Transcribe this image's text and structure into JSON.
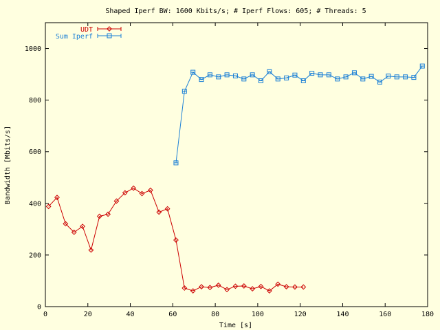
{
  "chart_data": {
    "type": "line",
    "title": "Shaped Iperf BW: 1600 Kbits/s; # Iperf Flows: 605; # Threads: 5",
    "xlabel": "Time [s]",
    "ylabel": "Bandwidth [Mbits/s]",
    "xlim": [
      0,
      180
    ],
    "ylim": [
      0,
      1100
    ],
    "xticks": [
      "0",
      "20",
      "40",
      "60",
      "80",
      "100",
      "120",
      "140",
      "160",
      "180"
    ],
    "yticks": [
      "0",
      "200",
      "400",
      "600",
      "800",
      "1000"
    ],
    "grid": false,
    "legend_position": "top-left",
    "series": [
      {
        "name": "UDT",
        "color": "#cc0000",
        "marker": "diamond",
        "x": [
          1.5,
          5.5,
          9.5,
          13.5,
          17.5,
          21.5,
          25.5,
          29.5,
          33.5,
          37.5,
          41.5,
          45.5,
          49.5,
          53.5,
          57.5,
          61.5,
          65.5,
          69.5,
          73.5,
          77.5,
          81.5,
          85.5,
          89.5,
          93.5,
          97.5,
          101.5,
          105.5,
          109.5,
          113.5,
          117.5,
          121.5
        ],
        "values": [
          388,
          423,
          321,
          288,
          311,
          219,
          350,
          358,
          409,
          441,
          459,
          438,
          451,
          366,
          379,
          258,
          72,
          61,
          77,
          74,
          83,
          66,
          79,
          80,
          69,
          78,
          61,
          87,
          77,
          76,
          76
        ]
      },
      {
        "name": "Sum Iperf",
        "color": "#1a7fd6",
        "marker": "square",
        "x": [
          61.5,
          65.5,
          69.5,
          73.5,
          77.5,
          81.5,
          85.5,
          89.5,
          93.5,
          97.5,
          101.5,
          105.5,
          109.5,
          113.5,
          117.5,
          121.5,
          125.5,
          129.5,
          133.5,
          137.5,
          141.5,
          145.5,
          149.5,
          153.5,
          157.5,
          161.5,
          165.5,
          169.5,
          173.5,
          177.5
        ],
        "values": [
          557,
          834,
          908,
          880,
          898,
          890,
          898,
          894,
          882,
          898,
          875,
          910,
          882,
          886,
          897,
          875,
          904,
          898,
          898,
          882,
          890,
          906,
          882,
          892,
          870,
          893,
          890,
          890,
          888,
          932
        ]
      }
    ]
  }
}
